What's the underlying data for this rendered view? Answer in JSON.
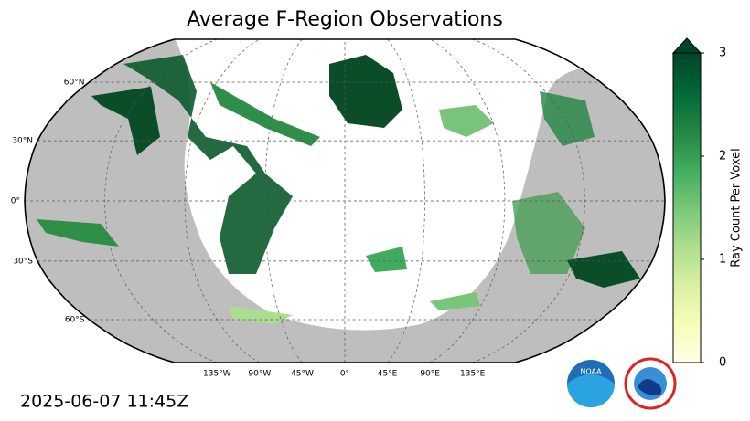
{
  "chart_data": {
    "type": "map",
    "title": "Average F-Region Observations",
    "timestamp": "2025-06-07 11:45Z",
    "lat_ticks": [
      {
        "value": 60,
        "label": "60°N"
      },
      {
        "value": 30,
        "label": "30°N"
      },
      {
        "value": 0,
        "label": "0°"
      },
      {
        "value": -30,
        "label": "30°S"
      },
      {
        "value": -60,
        "label": "60°S"
      }
    ],
    "lon_ticks": [
      {
        "value": -135,
        "label": "135°W"
      },
      {
        "value": -90,
        "label": "90°W"
      },
      {
        "value": -45,
        "label": "45°W"
      },
      {
        "value": 0,
        "label": "0°"
      },
      {
        "value": 45,
        "label": "45°E"
      },
      {
        "value": 90,
        "label": "90°E"
      },
      {
        "value": 135,
        "label": "135°E"
      }
    ],
    "colorbar": {
      "label": "Ray Count Per Voxel",
      "lim": [
        0,
        3
      ],
      "ticks": [
        0,
        1,
        2,
        3
      ],
      "colors": [
        "#ffffe5",
        "#f7fcb9",
        "#d9f0a3",
        "#addd8e",
        "#78c679",
        "#41ab5d",
        "#238443",
        "#006837",
        "#004529"
      ]
    },
    "logos": {
      "noaa": "NOAA"
    }
  }
}
